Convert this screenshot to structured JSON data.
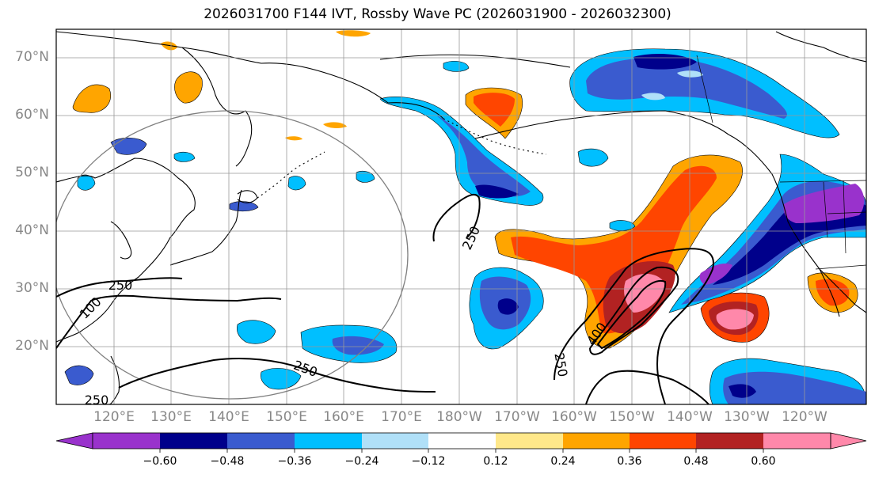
{
  "title": "2026031700 F144 IVT, Rossby Wave PC (2026031900 - 2026032300)",
  "map": {
    "lat_labels": [
      "70°N",
      "60°N",
      "50°N",
      "40°N",
      "30°N",
      "20°N"
    ],
    "lon_labels": [
      "120°E",
      "130°E",
      "140°E",
      "150°E",
      "160°E",
      "170°E",
      "180°W",
      "170°W",
      "160°W",
      "150°W",
      "140°W",
      "130°W",
      "120°W"
    ],
    "contour_labels": [
      "250",
      "250",
      "250",
      "250",
      "100",
      "400",
      "250"
    ]
  },
  "colorbar": {
    "colors": [
      "#9932cc",
      "#00008b",
      "#3a5bcf",
      "#00bfff",
      "#b0e0f8",
      "#ffffff",
      "#ffe88a",
      "#ffa500",
      "#ff4500",
      "#b22222",
      "#ff88aa"
    ],
    "tick_labels": [
      "−0.60",
      "−0.48",
      "−0.36",
      "−0.24",
      "−0.12",
      "0.12",
      "0.24",
      "0.36",
      "0.48",
      "0.60"
    ]
  }
}
